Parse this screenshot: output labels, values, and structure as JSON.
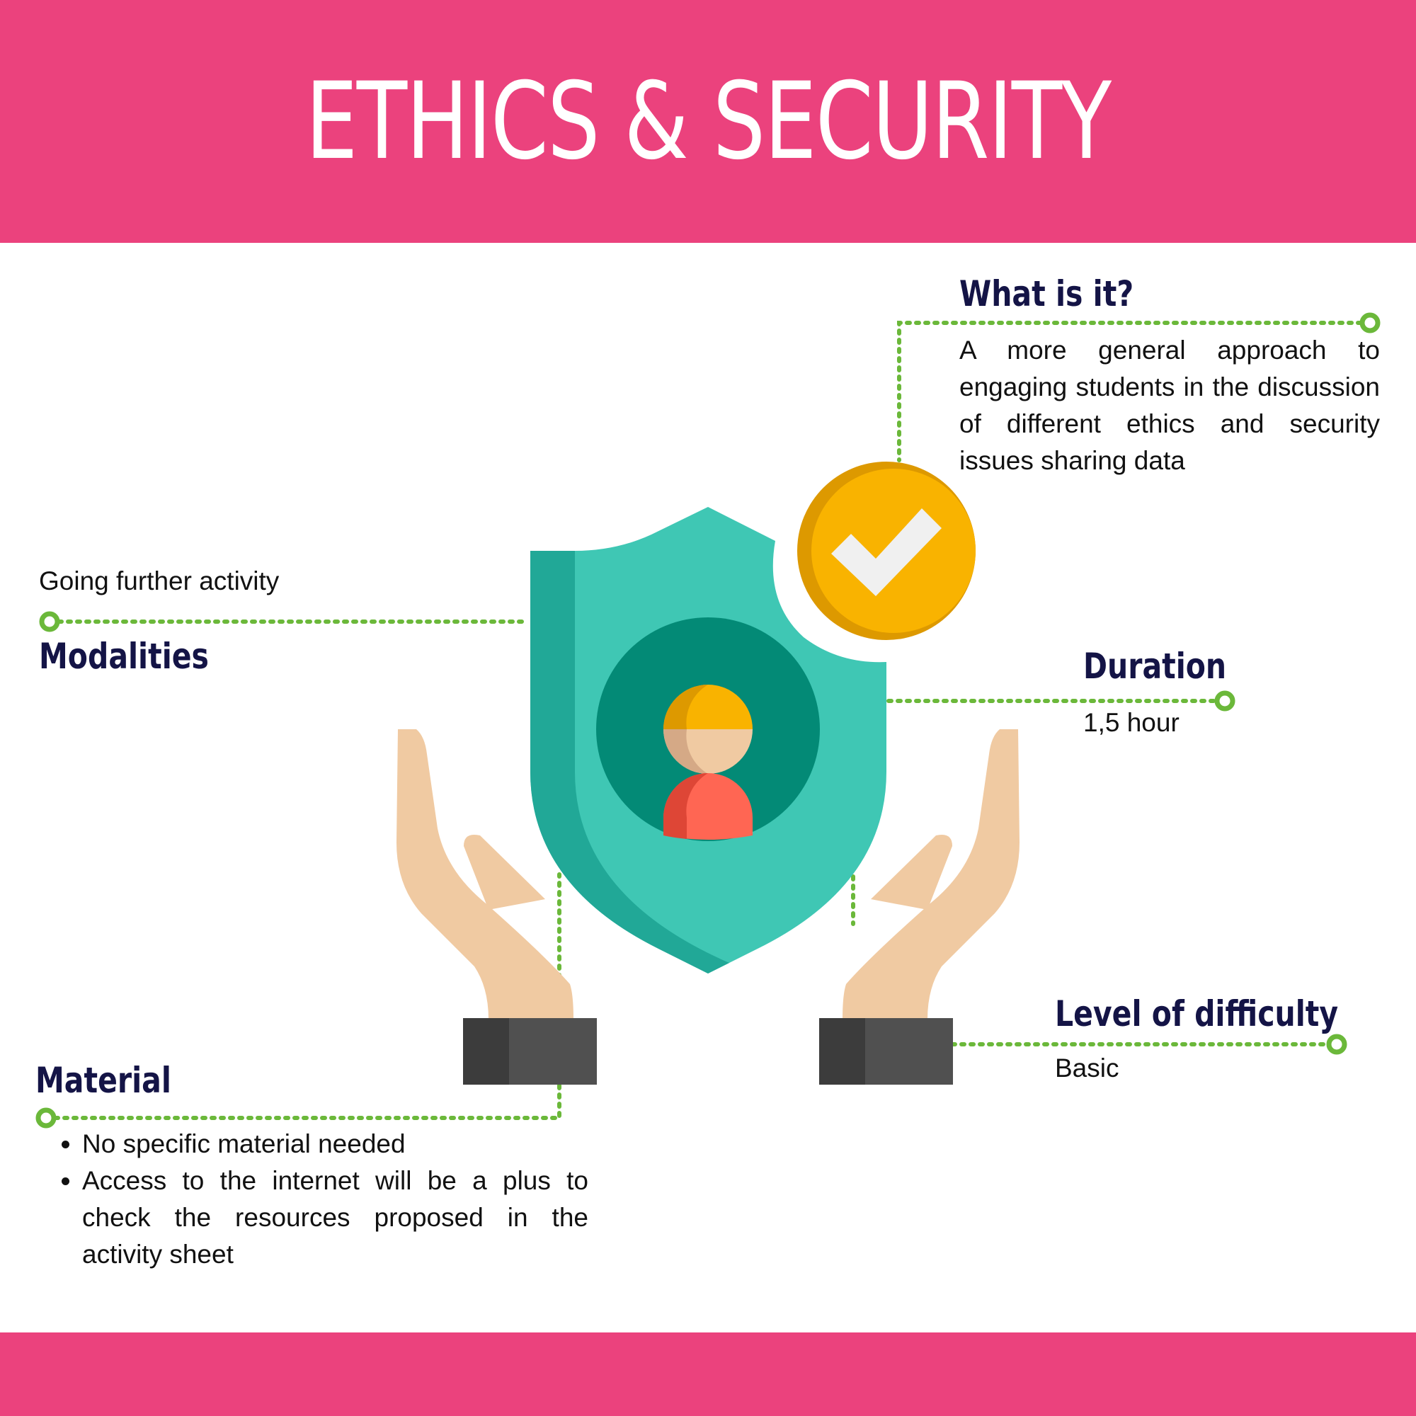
{
  "title": "ETHICS & SECURITY",
  "colors": {
    "band": "#EB427D",
    "heading": "#141446",
    "connector": "#6BB83A",
    "shield_light": "#3FC7B4",
    "shield_dark": "#21A897",
    "inner_circle": "#038A76",
    "check_badge": "#F9B300",
    "skin": "#F0CAA2",
    "sleeve": "#505050"
  },
  "what_is_it": {
    "heading": "What is it?",
    "text": "A more general approach to engaging students in the discussion of different ethics and security issues sharing data"
  },
  "modalities": {
    "heading": "Modalities",
    "text": "Going further activity"
  },
  "duration": {
    "heading": "Duration",
    "text": "1,5 hour"
  },
  "difficulty": {
    "heading": "Level of difficulty",
    "text": "Basic"
  },
  "material": {
    "heading": "Material",
    "items": [
      "No specific material needed",
      "Access to the internet will be a plus to check the resources proposed in the activity sheet"
    ]
  }
}
